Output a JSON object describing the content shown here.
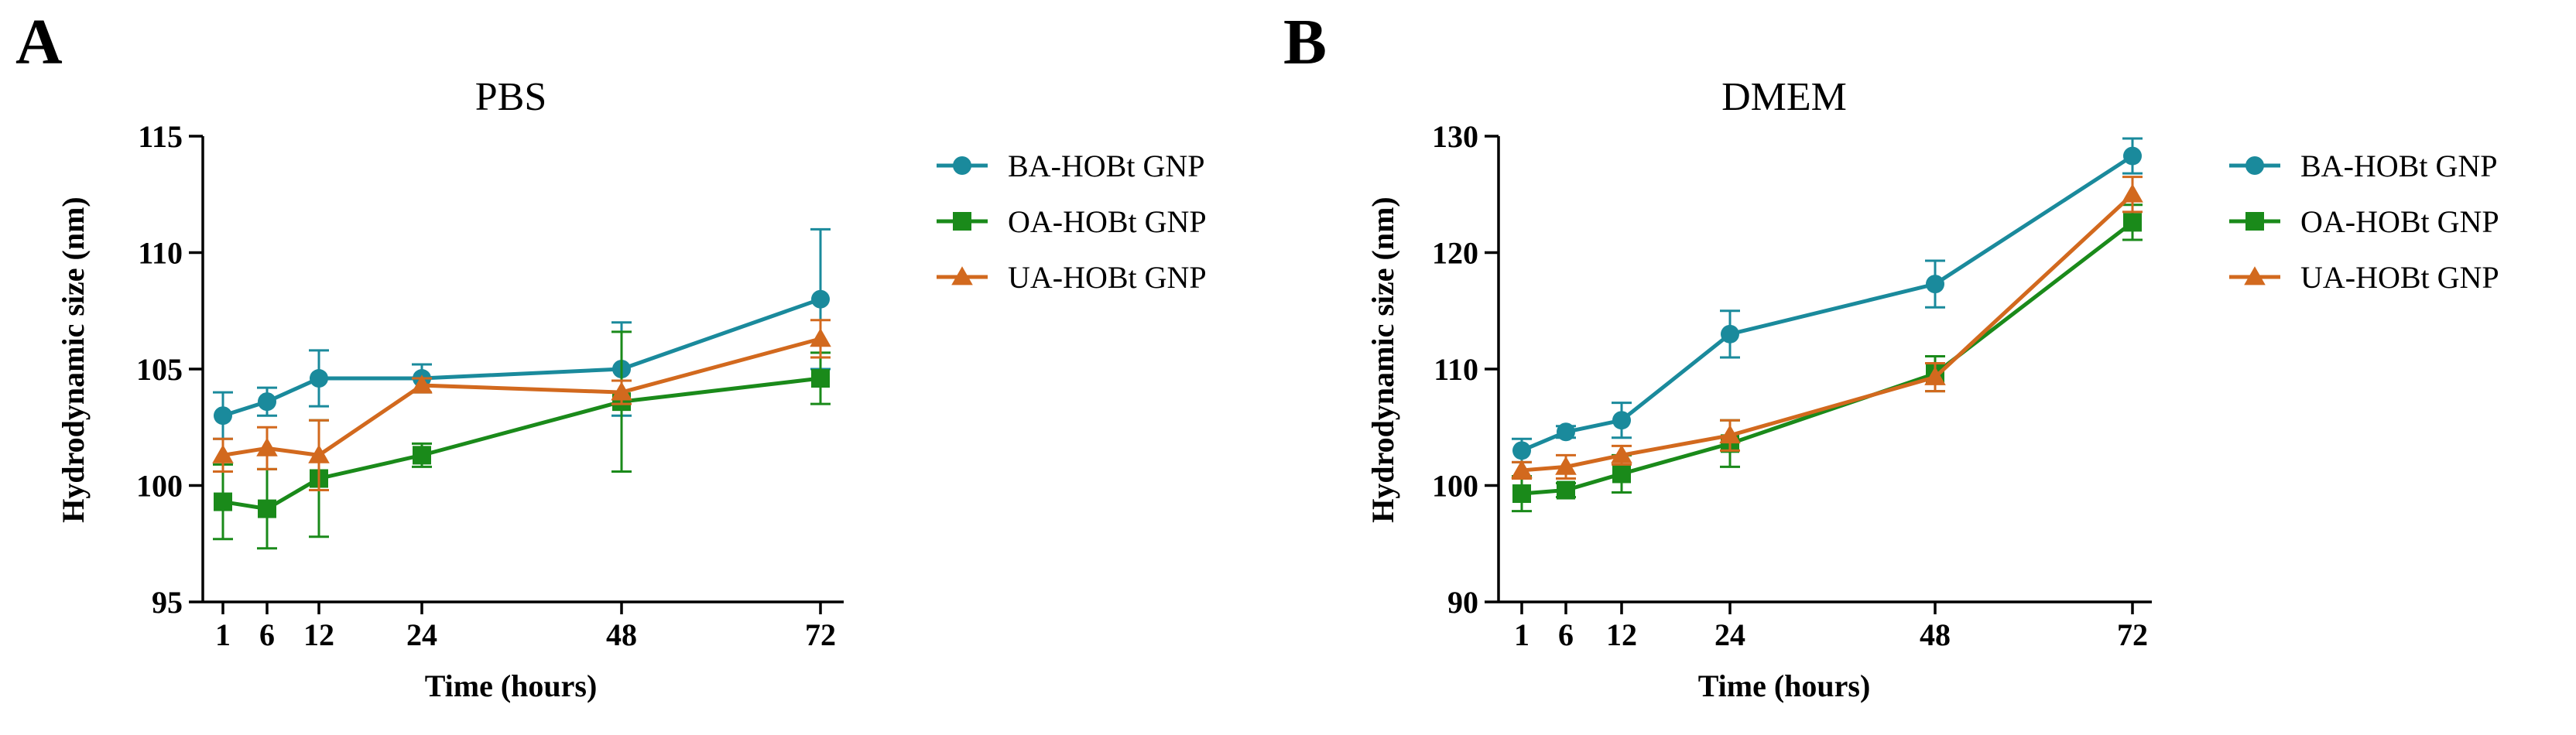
{
  "chart_data": [
    {
      "type": "line",
      "panel_label": "A",
      "title": "PBS",
      "xlabel": "Time (hours)",
      "ylabel": "Hydrodynamic size (nm)",
      "x": [
        1,
        6,
        12,
        24,
        48,
        72
      ],
      "x_ticks": [
        1,
        6,
        12,
        24,
        48,
        72
      ],
      "x_tick_labels": [
        "1",
        "6",
        "12",
        "24",
        "48",
        "72"
      ],
      "ylim": [
        95,
        115
      ],
      "y_ticks": [
        95,
        100,
        105,
        110,
        115
      ],
      "y_tick_labels": [
        "95",
        "100",
        "105",
        "110",
        "115"
      ],
      "legend_position": "right",
      "series": [
        {
          "name": "BA-HOBt GNP",
          "color": "#1a8a9c",
          "marker": "circle",
          "values": [
            103.0,
            103.6,
            104.6,
            104.6,
            105.0,
            108.0
          ],
          "errors": [
            1.0,
            0.6,
            1.2,
            0.6,
            2.0,
            3.0
          ]
        },
        {
          "name": "OA-HOBt GNP",
          "color": "#1a8a1a",
          "marker": "square",
          "values": [
            99.3,
            99.0,
            100.3,
            101.3,
            103.6,
            104.6
          ],
          "errors": [
            1.6,
            1.7,
            2.5,
            0.5,
            3.0,
            1.1
          ]
        },
        {
          "name": "UA-HOBt GNP",
          "color": "#d2691e",
          "marker": "triangle",
          "values": [
            101.3,
            101.6,
            101.3,
            104.3,
            104.0,
            106.3
          ],
          "errors": [
            0.7,
            0.9,
            1.5,
            0.3,
            0.5,
            0.8
          ]
        }
      ]
    },
    {
      "type": "line",
      "panel_label": "B",
      "title": "DMEM",
      "xlabel": "Time (hours)",
      "ylabel": "Hydrodynamic size (nm)",
      "x": [
        1,
        6,
        12,
        24,
        48,
        72
      ],
      "x_ticks": [
        1,
        6,
        12,
        24,
        48,
        72
      ],
      "x_tick_labels": [
        "1",
        "6",
        "12",
        "24",
        "48",
        "72"
      ],
      "ylim": [
        90,
        130
      ],
      "y_ticks": [
        90,
        100,
        110,
        120,
        130
      ],
      "y_tick_labels": [
        "90",
        "100",
        "110",
        "120",
        "130"
      ],
      "legend_position": "right",
      "series": [
        {
          "name": "BA-HOBt GNP",
          "color": "#1a8a9c",
          "marker": "circle",
          "values": [
            103.0,
            104.6,
            105.6,
            113.0,
            117.3,
            128.3
          ],
          "errors": [
            1.0,
            0.5,
            1.5,
            2.0,
            2.0,
            1.5
          ]
        },
        {
          "name": "OA-HOBt GNP",
          "color": "#1a8a1a",
          "marker": "square",
          "values": [
            99.3,
            99.6,
            101.0,
            103.6,
            109.6,
            122.6
          ],
          "errors": [
            1.5,
            0.6,
            1.6,
            2.0,
            1.5,
            1.5
          ]
        },
        {
          "name": "UA-HOBt GNP",
          "color": "#d2691e",
          "marker": "triangle",
          "values": [
            101.3,
            101.6,
            102.6,
            104.3,
            109.3,
            125.0
          ],
          "errors": [
            0.7,
            1.0,
            0.8,
            1.3,
            1.2,
            1.5
          ]
        }
      ]
    }
  ]
}
